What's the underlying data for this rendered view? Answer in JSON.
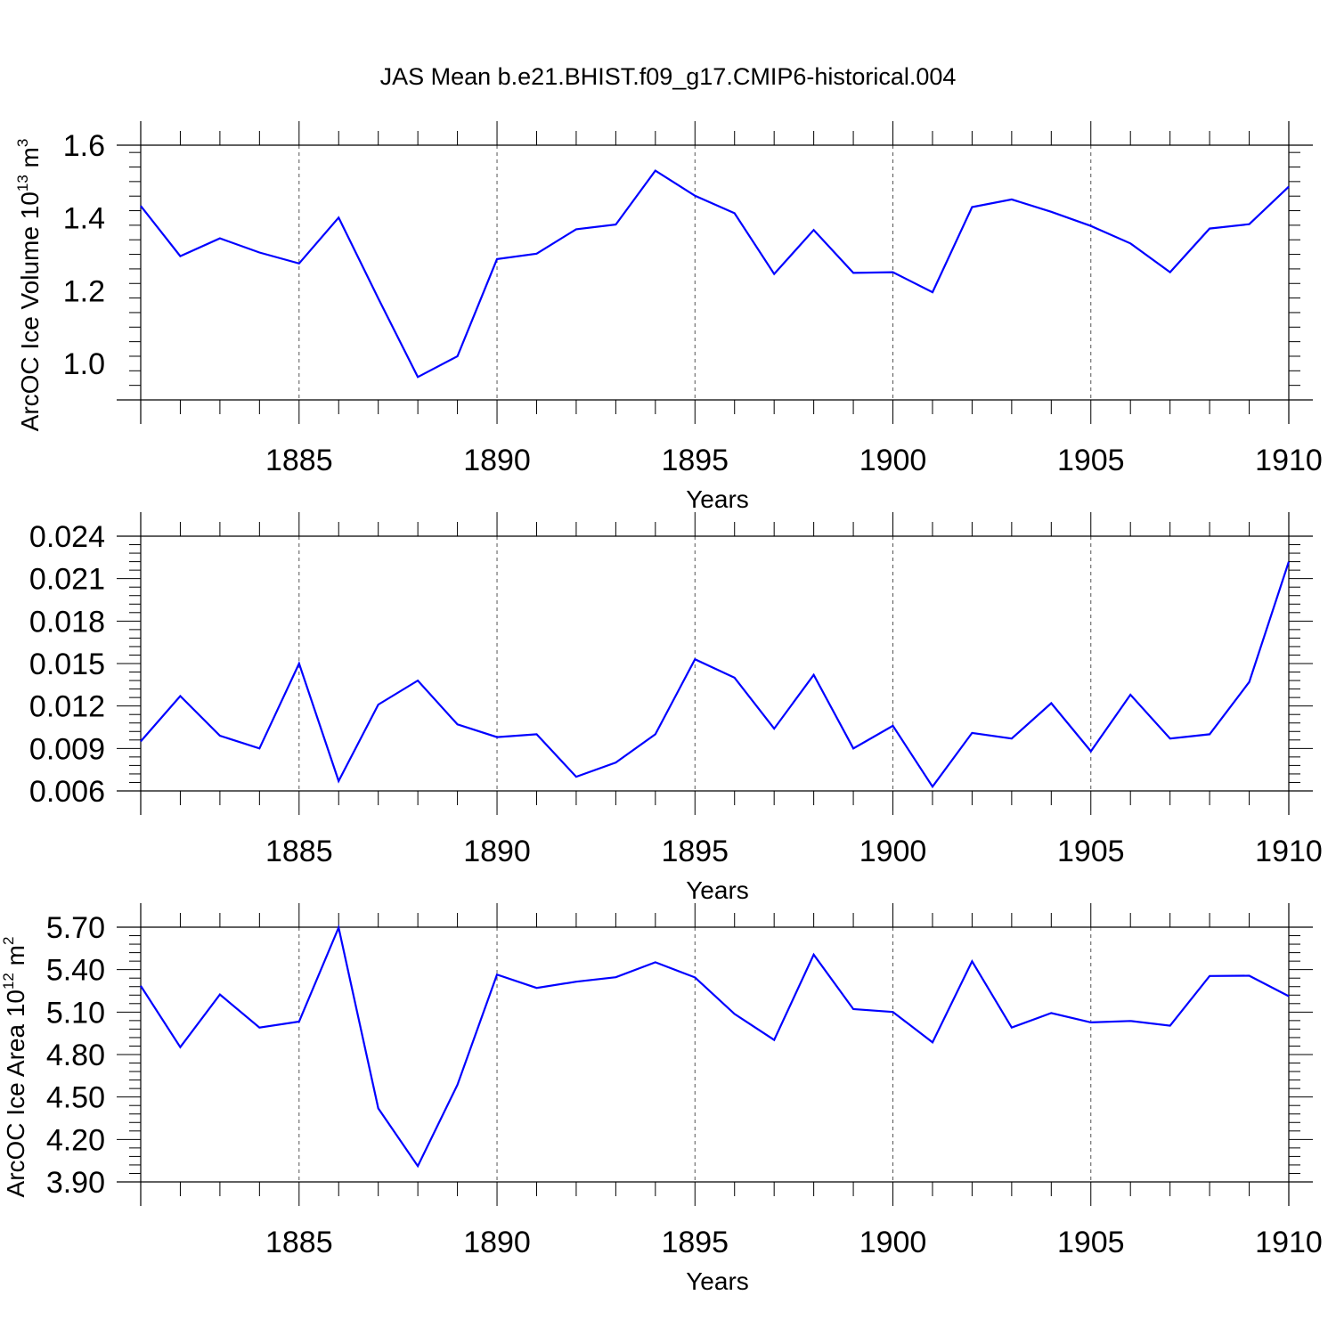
{
  "title": "JAS Mean b.e21.BHIST.f09_g17.CMIP6-historical.004",
  "chart_data": [
    {
      "type": "line",
      "ylabel": "ArcOC Ice Volume 10",
      "ylabel_exp": "13",
      "ylabel_unit": " m",
      "ylabel_unit_exp": "3",
      "xlabel": "Years",
      "xlim": [
        1881,
        1910
      ],
      "ylim": [
        0.9,
        1.6
      ],
      "yticks": [
        1.0,
        1.2,
        1.4,
        1.6
      ],
      "ytick_labels": [
        "1.0",
        "1.2",
        "1.4",
        "1.6"
      ],
      "xticks": [
        1885,
        1890,
        1895,
        1900,
        1905,
        1910
      ],
      "xtick_labels": [
        "1885",
        "1890",
        "1895",
        "1900",
        "1905",
        "1910"
      ],
      "grid_x": true,
      "line_color": "#0000ff",
      "x": [
        1881,
        1882,
        1883,
        1884,
        1885,
        1886,
        1887,
        1888,
        1889,
        1890,
        1891,
        1892,
        1893,
        1894,
        1895,
        1896,
        1897,
        1898,
        1899,
        1900,
        1901,
        1902,
        1903,
        1904,
        1905,
        1906,
        1907,
        1908,
        1909,
        1910
      ],
      "values": [
        1.433,
        1.295,
        1.344,
        1.305,
        1.275,
        1.401,
        1.179,
        0.963,
        1.02,
        1.287,
        1.302,
        1.369,
        1.382,
        1.53,
        1.461,
        1.413,
        1.246,
        1.367,
        1.249,
        1.251,
        1.196,
        1.43,
        1.451,
        1.417,
        1.378,
        1.33,
        1.251,
        1.371,
        1.383,
        1.486
      ]
    },
    {
      "type": "line",
      "ylabel": "",
      "xlabel": "Years",
      "xlim": [
        1881,
        1910
      ],
      "ylim": [
        0.006,
        0.024
      ],
      "yticks": [
        0.006,
        0.009,
        0.012,
        0.015,
        0.018,
        0.021,
        0.024
      ],
      "ytick_labels": [
        "0.006",
        "0.009",
        "0.012",
        "0.015",
        "0.018",
        "0.021",
        "0.024"
      ],
      "xticks": [
        1885,
        1890,
        1895,
        1900,
        1905,
        1910
      ],
      "xtick_labels": [
        "1885",
        "1890",
        "1895",
        "1900",
        "1905",
        "1910"
      ],
      "grid_x": true,
      "line_color": "#0000ff",
      "x": [
        1881,
        1882,
        1883,
        1884,
        1885,
        1886,
        1887,
        1888,
        1889,
        1890,
        1891,
        1892,
        1893,
        1894,
        1895,
        1896,
        1897,
        1898,
        1899,
        1900,
        1901,
        1902,
        1903,
        1904,
        1905,
        1906,
        1907,
        1908,
        1909,
        1910
      ],
      "values": [
        0.0095,
        0.0127,
        0.0099,
        0.009,
        0.015,
        0.0067,
        0.0121,
        0.0138,
        0.0107,
        0.0098,
        0.01,
        0.007,
        0.008,
        0.01,
        0.0153,
        0.014,
        0.0104,
        0.0142,
        0.009,
        0.0106,
        0.0063,
        0.0101,
        0.0097,
        0.0122,
        0.0088,
        0.0128,
        0.0097,
        0.01,
        0.0137,
        0.0222
      ]
    },
    {
      "type": "line",
      "ylabel": "ArcOC Ice Area 10",
      "ylabel_exp": "12",
      "ylabel_unit": " m",
      "ylabel_unit_exp": "2",
      "xlabel": "Years",
      "xlim": [
        1881,
        1910
      ],
      "ylim": [
        3.9,
        5.7
      ],
      "yticks": [
        3.9,
        4.2,
        4.5,
        4.8,
        5.1,
        5.4,
        5.7
      ],
      "ytick_labels": [
        "3.90",
        "4.20",
        "4.50",
        "4.80",
        "5.10",
        "5.40",
        "5.70"
      ],
      "xticks": [
        1885,
        1890,
        1895,
        1900,
        1905,
        1910
      ],
      "xtick_labels": [
        "1885",
        "1890",
        "1895",
        "1900",
        "1905",
        "1910"
      ],
      "grid_x": true,
      "line_color": "#0000ff",
      "x": [
        1881,
        1882,
        1883,
        1884,
        1885,
        1886,
        1887,
        1888,
        1889,
        1890,
        1891,
        1892,
        1893,
        1894,
        1895,
        1896,
        1897,
        1898,
        1899,
        1900,
        1901,
        1902,
        1903,
        1904,
        1905,
        1906,
        1907,
        1908,
        1909,
        1910
      ],
      "values": [
        5.285,
        4.852,
        5.224,
        4.991,
        5.033,
        5.697,
        4.42,
        4.012,
        4.586,
        5.365,
        5.271,
        5.315,
        5.346,
        5.452,
        5.345,
        5.087,
        4.903,
        5.506,
        5.121,
        5.101,
        4.886,
        5.459,
        4.991,
        5.093,
        5.027,
        5.037,
        5.004,
        5.355,
        5.357,
        5.212
      ]
    }
  ]
}
